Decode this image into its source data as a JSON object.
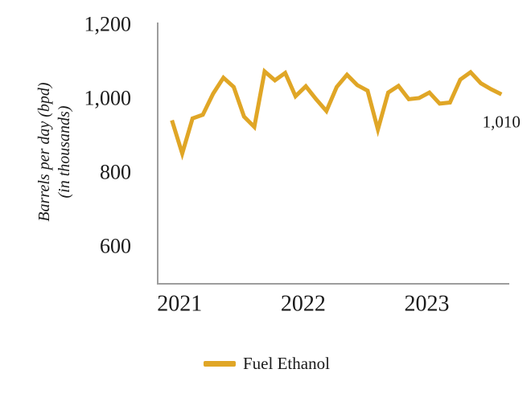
{
  "chart_data": {
    "type": "line",
    "title": "",
    "ylabel_line1": "Barrels per day (bpd)",
    "ylabel_line2": "(in thousands)",
    "y_axis": {
      "ticks": [
        1200,
        1000,
        800,
        600
      ],
      "tick_labels": [
        "1,200",
        "1,000",
        "800",
        "600"
      ],
      "ylim": [
        500,
        1200
      ],
      "grid": false
    },
    "x_axis": {
      "tick_labels": [
        "2021",
        "2022",
        "2023"
      ],
      "frequency": "monthly"
    },
    "months": [
      "2021-01",
      "2021-02",
      "2021-03",
      "2021-04",
      "2021-05",
      "2021-06",
      "2021-07",
      "2021-08",
      "2021-09",
      "2021-10",
      "2021-11",
      "2021-12",
      "2022-01",
      "2022-02",
      "2022-03",
      "2022-04",
      "2022-05",
      "2022-06",
      "2022-07",
      "2022-08",
      "2022-09",
      "2022-10",
      "2022-11",
      "2022-12",
      "2023-01",
      "2023-02",
      "2023-03",
      "2023-04",
      "2023-05",
      "2023-06",
      "2023-07",
      "2023-08",
      "2023-09"
    ],
    "series": [
      {
        "name": "Fuel Ethanol",
        "color": "#e0a626",
        "values": [
          940,
          850,
          945,
          955,
          1012,
          1055,
          1030,
          950,
          922,
          1072,
          1048,
          1068,
          1005,
          1032,
          997,
          965,
          1030,
          1063,
          1035,
          1020,
          915,
          1015,
          1033,
          997,
          1000,
          1015,
          985,
          988,
          1050,
          1070,
          1040,
          1024,
          1010
        ]
      }
    ],
    "end_label": "1,010",
    "legend": {
      "position": "bottom",
      "entries": [
        {
          "label": "Fuel Ethanol",
          "color": "#e0a626"
        }
      ]
    }
  }
}
